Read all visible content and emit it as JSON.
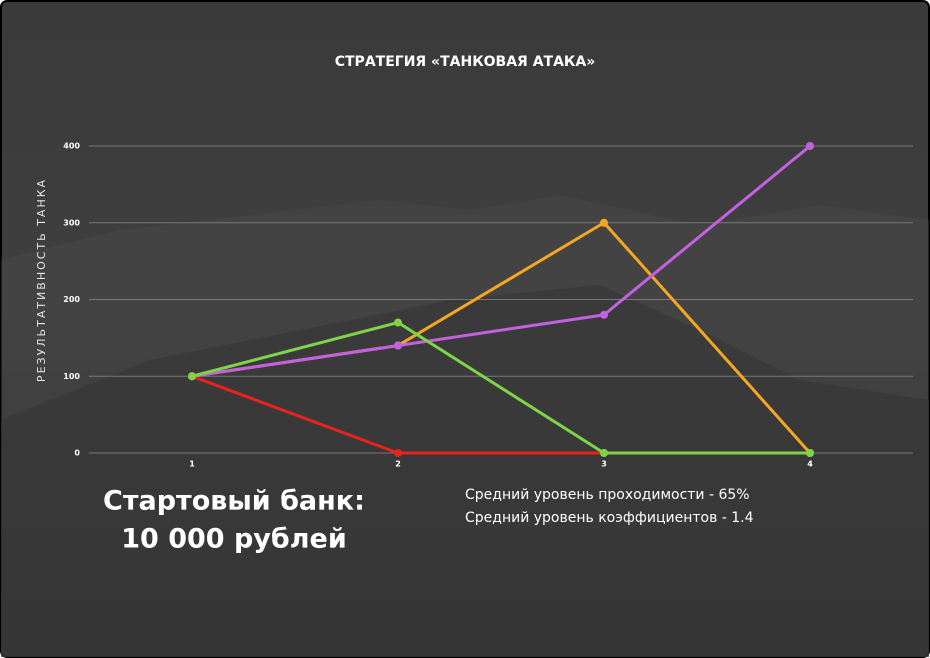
{
  "chart_data": {
    "type": "line",
    "title": "СТРАТЕГИЯ «ТАНКОВАЯ АТАКА»",
    "y_label": "РЕЗУЛЬТАТИВНОСТЬ ТАНКА",
    "categories": [
      "1",
      "2",
      "3",
      "4"
    ],
    "series": [
      {
        "color": "#e8231f",
        "values": [
          100,
          0,
          0,
          0
        ]
      },
      {
        "color": "#f5a623",
        "values": [
          100,
          140,
          300,
          0
        ]
      },
      {
        "color": "#c262e0",
        "values": [
          100,
          140,
          180,
          400
        ]
      },
      {
        "color": "#7ed348",
        "values": [
          100,
          170,
          0,
          0
        ]
      }
    ],
    "ylim": [
      0,
      400
    ],
    "yticks": [
      0,
      100,
      200,
      300,
      400
    ],
    "grid": true,
    "bank_lines": [
      "Стартовый банк:",
      "10 000 рублей"
    ],
    "notes": [
      "Средний уровень проходимости - 65%",
      "Средний уровень коэффициентов - 1.4"
    ]
  }
}
